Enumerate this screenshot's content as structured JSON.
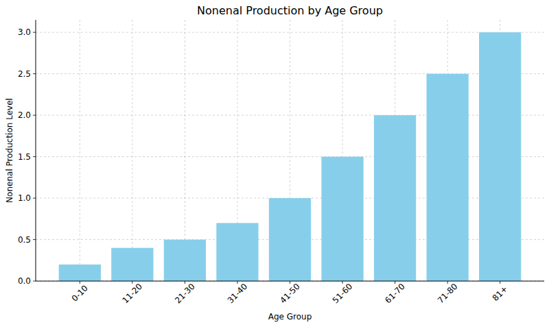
{
  "chart_data": {
    "type": "bar",
    "title": "Nonenal Production by Age Group",
    "x_label": "Age Group",
    "y_label": "Nonenal Production Level",
    "categories": [
      "0-10",
      "11-20",
      "21-30",
      "31-40",
      "41-50",
      "51-60",
      "61-70",
      "71-80",
      "81+"
    ],
    "values": [
      0.2,
      0.4,
      0.5,
      0.7,
      1.0,
      1.5,
      2.0,
      2.5,
      3.0
    ],
    "color": "#87ceeb",
    "ylim": [
      0,
      3.15
    ],
    "yticks": [
      {
        "value": 0,
        "label": "0.0"
      },
      0.5,
      {
        "value": 1,
        "label": "1.0"
      },
      1.5,
      {
        "value": 2,
        "label": "2.0"
      },
      2.5,
      {
        "value": 3,
        "label": "3.0"
      }
    ],
    "grid": true
  }
}
